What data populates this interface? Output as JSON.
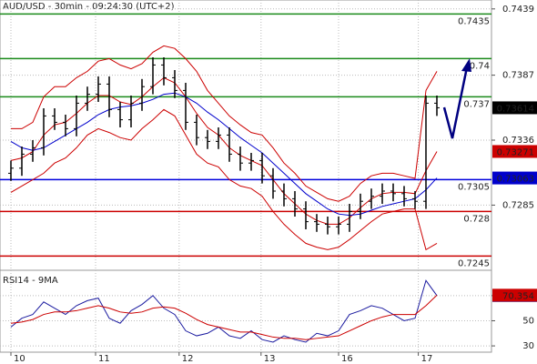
{
  "chart_data": [
    {
      "type": "ohlc",
      "title": "AUD/USD - 30min - 09:24:30 (UTC+2)",
      "x": [
        1,
        2,
        3,
        4,
        5,
        6,
        7,
        8,
        9,
        10,
        11,
        12,
        13,
        14,
        15,
        16,
        17,
        18,
        19,
        20,
        21,
        22,
        23,
        24,
        25,
        26,
        27,
        28,
        29,
        30,
        31,
        32,
        33,
        34,
        35,
        36,
        37,
        38,
        39,
        40
      ],
      "open": [
        0.731,
        0.7314,
        0.7325,
        0.733,
        0.7355,
        0.735,
        0.7345,
        0.7365,
        0.7372,
        0.738,
        0.736,
        0.7352,
        0.7365,
        0.7378,
        0.7395,
        0.7385,
        0.7375,
        0.735,
        0.7338,
        0.7335,
        0.734,
        0.7325,
        0.7318,
        0.732,
        0.7308,
        0.7296,
        0.729,
        0.7282,
        0.7272,
        0.727,
        0.7268,
        0.727,
        0.728,
        0.7288,
        0.7292,
        0.7296,
        0.7294,
        0.729,
        0.7288,
        0.7365
      ],
      "high": [
        0.732,
        0.7331,
        0.7336,
        0.7361,
        0.7361,
        0.7356,
        0.7371,
        0.7378,
        0.7386,
        0.7386,
        0.7366,
        0.7371,
        0.7384,
        0.7401,
        0.7401,
        0.7391,
        0.7381,
        0.7356,
        0.7344,
        0.7346,
        0.7346,
        0.7331,
        0.7326,
        0.7326,
        0.7314,
        0.7302,
        0.7296,
        0.7288,
        0.7278,
        0.7276,
        0.7276,
        0.7286,
        0.7294,
        0.7298,
        0.7302,
        0.7302,
        0.73,
        0.7296,
        0.7371,
        0.7371
      ],
      "low": [
        0.7304,
        0.7308,
        0.7319,
        0.7324,
        0.7344,
        0.7339,
        0.7339,
        0.7359,
        0.7366,
        0.7354,
        0.7346,
        0.7346,
        0.7359,
        0.7372,
        0.7379,
        0.7369,
        0.7344,
        0.7332,
        0.7329,
        0.7329,
        0.7319,
        0.7312,
        0.7312,
        0.7302,
        0.729,
        0.7284,
        0.7276,
        0.7266,
        0.7264,
        0.7262,
        0.7262,
        0.7264,
        0.7274,
        0.7282,
        0.7286,
        0.7288,
        0.7284,
        0.7282,
        0.7282,
        0.7355
      ],
      "close": [
        0.7314,
        0.7325,
        0.733,
        0.7355,
        0.735,
        0.7345,
        0.7365,
        0.7372,
        0.738,
        0.736,
        0.7352,
        0.7365,
        0.7378,
        0.7395,
        0.7385,
        0.7375,
        0.735,
        0.7338,
        0.7335,
        0.734,
        0.7325,
        0.7318,
        0.732,
        0.7308,
        0.7296,
        0.729,
        0.7282,
        0.7272,
        0.727,
        0.7268,
        0.727,
        0.728,
        0.7288,
        0.7292,
        0.7296,
        0.7294,
        0.729,
        0.7288,
        0.7365,
        0.73614
      ],
      "color": "#000000",
      "lines": [
        {
          "color": "#cc0000",
          "values": [
            0.7345,
            0.7345,
            0.735,
            0.737,
            0.7378,
            0.7378,
            0.7385,
            0.739,
            0.7398,
            0.74,
            0.7395,
            0.7392,
            0.7396,
            0.7405,
            0.741,
            0.7408,
            0.74,
            0.739,
            0.7375,
            0.7365,
            0.7355,
            0.7348,
            0.7342,
            0.734,
            0.733,
            0.7318,
            0.731,
            0.73,
            0.7295,
            0.729,
            0.7288,
            0.7292,
            0.7302,
            0.7308,
            0.731,
            0.731,
            0.7308,
            0.7306,
            0.7375,
            0.739
          ]
        },
        {
          "color": "#cc0000",
          "values": [
            0.7295,
            0.73,
            0.7305,
            0.731,
            0.7318,
            0.7322,
            0.733,
            0.734,
            0.7345,
            0.7342,
            0.7338,
            0.7336,
            0.7345,
            0.7352,
            0.736,
            0.7355,
            0.734,
            0.7325,
            0.7318,
            0.7315,
            0.7305,
            0.73,
            0.7298,
            0.7292,
            0.728,
            0.727,
            0.7262,
            0.7255,
            0.7252,
            0.725,
            0.7252,
            0.7258,
            0.7265,
            0.7272,
            0.7278,
            0.728,
            0.7282,
            0.7282,
            0.725,
            0.7255
          ]
        },
        {
          "color": "#cc0000",
          "tag": true,
          "values": [
            0.732,
            0.7322,
            0.7327,
            0.734,
            0.7348,
            0.735,
            0.7357,
            0.7365,
            0.7371,
            0.7371,
            0.7366,
            0.7364,
            0.737,
            0.7378,
            0.7385,
            0.7381,
            0.737,
            0.7357,
            0.7346,
            0.734,
            0.733,
            0.7324,
            0.732,
            0.7316,
            0.7305,
            0.7294,
            0.7286,
            0.7278,
            0.7273,
            0.727,
            0.727,
            0.7275,
            0.7283,
            0.729,
            0.7294,
            0.7295,
            0.7295,
            0.7294,
            0.7312,
            0.73271
          ]
        },
        {
          "color": "#0000cc",
          "tag": true,
          "values": [
            0.7335,
            0.733,
            0.7328,
            0.733,
            0.7335,
            0.734,
            0.7345,
            0.735,
            0.7356,
            0.736,
            0.7362,
            0.7363,
            0.7365,
            0.7368,
            0.7372,
            0.7373,
            0.737,
            0.7365,
            0.7358,
            0.7352,
            0.7345,
            0.7338,
            0.7332,
            0.7326,
            0.7318,
            0.731,
            0.7302,
            0.7294,
            0.7288,
            0.7282,
            0.7278,
            0.7277,
            0.7278,
            0.7281,
            0.7284,
            0.7286,
            0.7288,
            0.729,
            0.7297,
            0.73063
          ]
        }
      ],
      "levels": [
        {
          "value": 0.7435,
          "color": "#1a8a1a"
        },
        {
          "value": 0.74,
          "color": "#1a8a1a"
        },
        {
          "value": 0.737,
          "color": "#1a8a1a"
        },
        {
          "value": 0.7305,
          "color": "#0000dd"
        },
        {
          "value": 0.728,
          "color": "#cc0000"
        },
        {
          "value": 0.7245,
          "color": "#cc0000"
        }
      ],
      "xlim": [
        0,
        41.5
      ],
      "ylim": [
        0.7236,
        0.7446
      ],
      "yticks": [
        0.7439,
        0.7387,
        0.7336,
        0.7285
      ],
      "xticks": [
        {
          "value": 1,
          "label": "10"
        },
        {
          "value": 8.75,
          "label": "11"
        },
        {
          "value": 16.4,
          "label": "12"
        },
        {
          "value": 23.9,
          "label": "13"
        },
        {
          "value": 31,
          "label": "16"
        },
        {
          "value": 38.3,
          "label": "17"
        }
      ],
      "grid": true
    },
    {
      "type": "line",
      "title": "RSI14 - 9MA",
      "lines": [
        {
          "color": "#1c1ca0",
          "tag": true,
          "values": [
            45,
            52,
            55,
            65,
            60,
            55,
            62,
            66,
            68,
            52,
            48,
            58,
            63,
            70,
            60,
            55,
            42,
            38,
            40,
            45,
            38,
            36,
            42,
            35,
            33,
            38,
            35,
            33,
            40,
            38,
            42,
            55,
            58,
            62,
            60,
            55,
            50,
            52,
            82,
            70.0573
          ]
        },
        {
          "color": "#cc0000",
          "tag": true,
          "values": [
            48,
            49,
            51,
            55,
            57,
            57,
            58,
            60,
            62,
            60,
            57,
            56,
            57,
            60,
            61,
            60,
            56,
            51,
            47,
            45,
            43,
            41,
            41,
            39,
            37,
            36,
            36,
            35,
            36,
            37,
            38,
            42,
            46,
            50,
            53,
            55,
            55,
            55,
            62,
            70.354
          ]
        }
      ],
      "ylim": [
        25,
        88
      ],
      "yticks": [
        70,
        50,
        30
      ],
      "grid": true
    }
  ]
}
